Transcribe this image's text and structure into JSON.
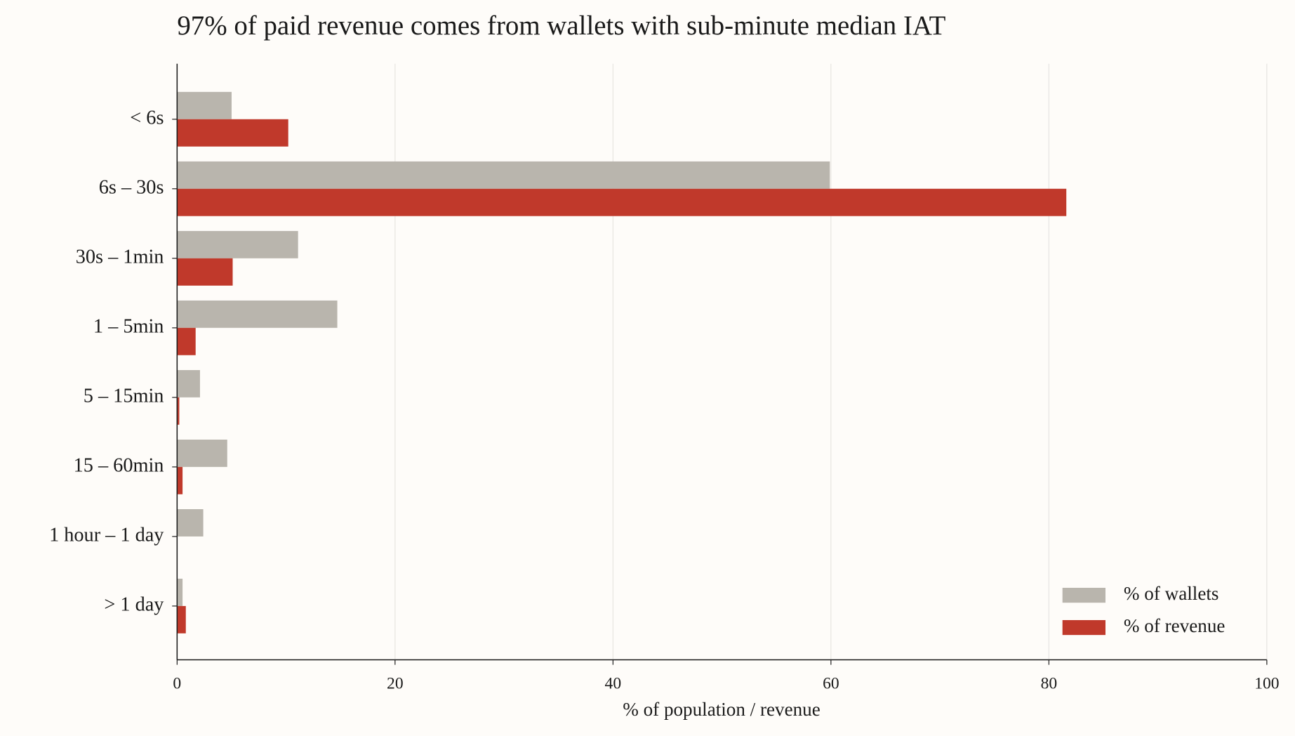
{
  "chart_data": {
    "type": "barh",
    "title": "97% of paid revenue comes from wallets with sub-minute median IAT",
    "categories": [
      "< 6s",
      "6s – 30s",
      "30s – 1min",
      "1 – 5min",
      "5 – 15min",
      "15 – 60min",
      "1 hour – 1 day",
      "> 1 day"
    ],
    "series": [
      {
        "name": "% of wallets",
        "color": "#b9b5ad",
        "values": [
          5.0,
          59.9,
          11.1,
          14.7,
          2.1,
          4.6,
          2.4,
          0.5
        ]
      },
      {
        "name": "% of revenue",
        "color": "#c0392b",
        "values": [
          10.2,
          81.6,
          5.1,
          1.7,
          0.2,
          0.5,
          0,
          0.8
        ]
      }
    ],
    "xlabel": "% of population / revenue",
    "xlim": [
      0,
      100
    ],
    "xticks": [
      0,
      20,
      40,
      60,
      80,
      100
    ],
    "grid": true,
    "legend": "lower right"
  }
}
